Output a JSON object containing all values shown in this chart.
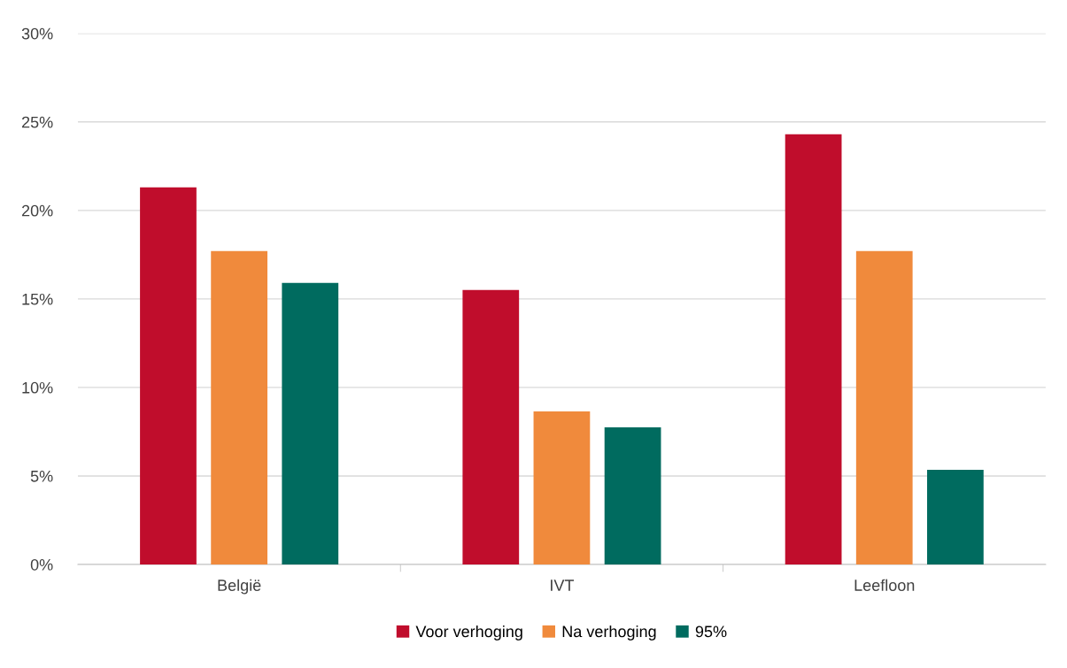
{
  "chart_data": {
    "type": "bar",
    "categories": [
      "België",
      "IVT",
      "Leefloon"
    ],
    "series": [
      {
        "name": "Voor verhoging",
        "color": "#c00d2c",
        "values": [
          21.3,
          15.5,
          24.3
        ]
      },
      {
        "name": "Na verhoging",
        "color": "#f08a3c",
        "values": [
          17.7,
          8.65,
          17.7
        ]
      },
      {
        "name": "95%",
        "color": "#006b5f",
        "values": [
          15.9,
          7.75,
          5.35
        ]
      }
    ],
    "ylim": [
      0,
      30
    ],
    "yticks": [
      {
        "value": 0,
        "label": "0%"
      },
      {
        "value": 5,
        "label": "5%"
      },
      {
        "value": 10,
        "label": "10%"
      },
      {
        "value": 15,
        "label": "15%"
      },
      {
        "value": 20,
        "label": "20%"
      },
      {
        "value": 25,
        "label": "25%"
      },
      {
        "value": 30,
        "label": "30%"
      }
    ],
    "grid": "y",
    "legend": "bottom"
  }
}
